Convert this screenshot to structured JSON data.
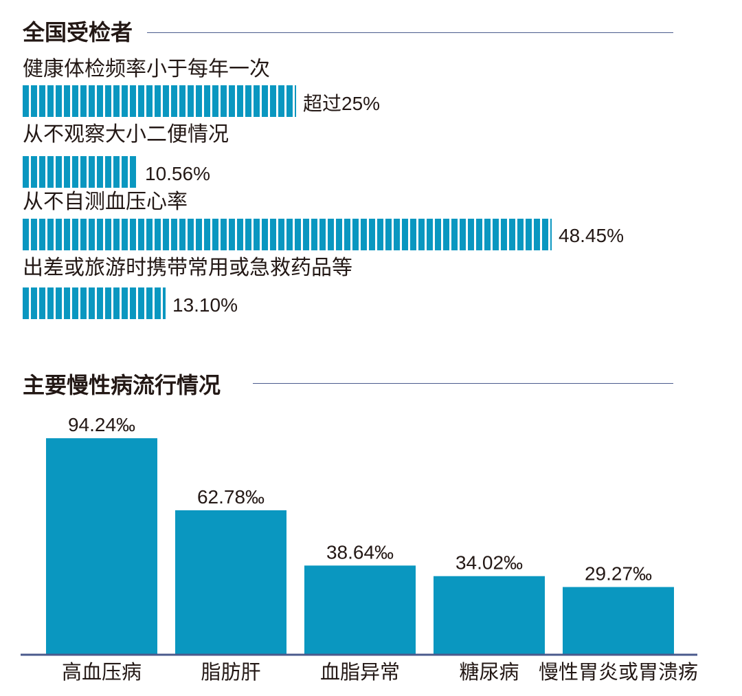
{
  "section1": {
    "title": "全国受检者",
    "items": [
      {
        "label": "健康体检频率小于每年一次",
        "value": 25,
        "value_label": "超过25%"
      },
      {
        "label": "从不观察大小二便情况",
        "value": 10.56,
        "value_label": "10.56%"
      },
      {
        "label": "从不自测血压心率",
        "value": 48.45,
        "value_label": "48.45%"
      },
      {
        "label": "出差或旅游时携带常用或急救药品等",
        "value": 13.1,
        "value_label": "13.10%"
      }
    ]
  },
  "section2": {
    "title": "主要慢性病流行情况"
  },
  "colors": {
    "bar": "#0a97c0",
    "rule": "#4a5a8c",
    "text": "#231815"
  },
  "chart_data": [
    {
      "type": "bar",
      "orientation": "horizontal",
      "title": "全国受检者",
      "categories": [
        "健康体检频率小于每年一次",
        "从不观察大小二便情况",
        "从不自测血压心率",
        "出差或旅游时携带常用或急救药品等"
      ],
      "values": [
        25,
        10.56,
        48.45,
        13.1
      ],
      "data_labels": [
        "超过25%",
        "10.56%",
        "48.45%",
        "13.10%"
      ]
    },
    {
      "type": "bar",
      "title": "主要慢性病流行情况",
      "categories": [
        "高血压病",
        "脂肪肝",
        "血脂异常",
        "糖尿病",
        "慢性胃炎或胃溃疡"
      ],
      "values": [
        94.24,
        62.78,
        38.64,
        34.02,
        29.27
      ],
      "data_labels": [
        "94.24‰",
        "62.78‰",
        "38.64‰",
        "34.02‰",
        "29.27‰"
      ]
    }
  ]
}
